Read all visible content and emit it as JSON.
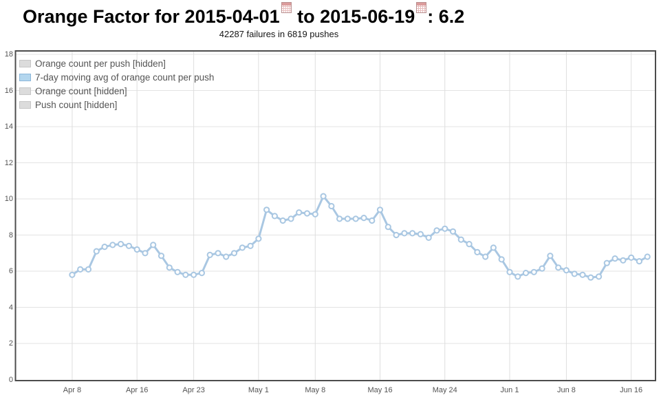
{
  "header": {
    "title_prefix": "Orange Factor for ",
    "date_from": "2015-04-01",
    "title_joiner": " to ",
    "date_to": "2015-06-19",
    "title_suffix": ": 6.2",
    "orange_factor": "6.2",
    "subtitle": "42287 failures in 6819 pushes",
    "icons": {
      "date_from_icon": "calendar-icon",
      "date_to_icon": "calendar-icon"
    }
  },
  "legend": {
    "items": [
      {
        "label": "Orange count per push [hidden]",
        "swatch_fill": "#dcdcdc",
        "swatch_border": "#c6c6c6",
        "hidden": true
      },
      {
        "label": "7-day moving avg of orange count per push",
        "swatch_fill": "#b3d6ee",
        "swatch_border": "#8ab6d9",
        "hidden": false
      },
      {
        "label": "Orange count [hidden]",
        "swatch_fill": "#dcdcdc",
        "swatch_border": "#c6c6c6",
        "hidden": true
      },
      {
        "label": "Push count [hidden]",
        "swatch_fill": "#dcdcdc",
        "swatch_border": "#c6c6c6",
        "hidden": true
      }
    ]
  },
  "chart_data": {
    "type": "line",
    "title": "Orange Factor for 2015-04-01 to 2015-06-19: 6.2",
    "subtitle": "42287 failures in 6819 pushes",
    "xlabel": "",
    "ylabel": "",
    "grid": true,
    "legend_position": "top-left",
    "ylim": [
      0,
      18.2
    ],
    "y_ticks": [
      0,
      2,
      4,
      6,
      8,
      10,
      12,
      14,
      16,
      18
    ],
    "x_domain": {
      "start_date": "2015-04-01",
      "end_date": "2015-06-19",
      "total_days": 79
    },
    "x_ticks": [
      {
        "label": "Apr 8",
        "day": 7
      },
      {
        "label": "Apr 16",
        "day": 15
      },
      {
        "label": "Apr 23",
        "day": 22
      },
      {
        "label": "May 1",
        "day": 30
      },
      {
        "label": "May 8",
        "day": 37
      },
      {
        "label": "May 16",
        "day": 45
      },
      {
        "label": "May 24",
        "day": 53
      },
      {
        "label": "Jun 1",
        "day": 61
      },
      {
        "label": "Jun 8",
        "day": 68
      },
      {
        "label": "Jun 16",
        "day": 76
      }
    ],
    "line_color": "#a9c7e2",
    "marker_fill": "#ffffff",
    "series": [
      {
        "name": "7-day moving avg of orange count per push",
        "start_date": "2015-04-08",
        "interval": "daily",
        "values": [
          5.8,
          6.1,
          6.1,
          7.1,
          7.35,
          7.45,
          7.5,
          7.4,
          7.2,
          7.0,
          7.45,
          6.85,
          6.2,
          5.95,
          5.8,
          5.8,
          5.9,
          6.9,
          7.0,
          6.8,
          7.0,
          7.3,
          7.4,
          7.8,
          9.4,
          9.05,
          8.8,
          8.9,
          9.25,
          9.2,
          9.15,
          10.15,
          9.6,
          8.9,
          8.9,
          8.9,
          8.95,
          8.8,
          9.4,
          8.45,
          8.0,
          8.1,
          8.1,
          8.05,
          7.85,
          8.25,
          8.35,
          8.2,
          7.75,
          7.5,
          7.05,
          6.8,
          7.3,
          6.65,
          5.95,
          5.7,
          5.9,
          5.95,
          6.15,
          6.85,
          6.2,
          6.05,
          5.85,
          5.8,
          5.65,
          5.7,
          6.45,
          6.7,
          6.6,
          6.75,
          6.55,
          6.8
        ]
      }
    ]
  }
}
